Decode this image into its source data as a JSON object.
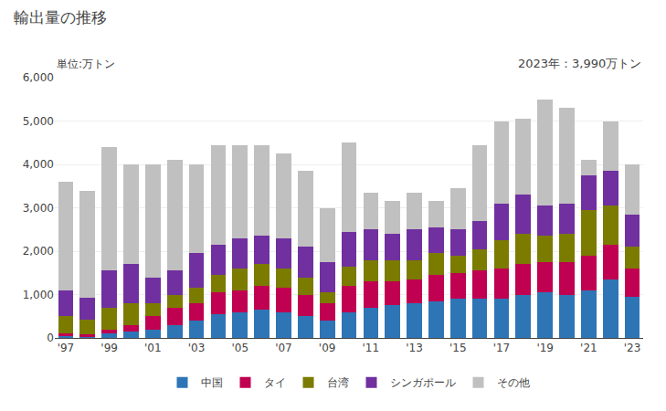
{
  "chart_data": {
    "type": "bar",
    "stacked": true,
    "title": "輸出量の推移",
    "subtitle": "単位:万トン",
    "annotations": [
      "2023年：3,990万トン"
    ],
    "categories": [
      "'97",
      null,
      "'99",
      null,
      "'01",
      null,
      "'03",
      null,
      "'05",
      null,
      "'07",
      null,
      "'09",
      null,
      "'11",
      null,
      "'13",
      null,
      "'15",
      null,
      "'17",
      null,
      "'19",
      null,
      "'21",
      null,
      "'23"
    ],
    "series": [
      {
        "name": "中国",
        "color": "#2E75B6",
        "values": [
          50,
          30,
          100,
          150,
          200,
          300,
          400,
          550,
          600,
          650,
          600,
          500,
          400,
          600,
          700,
          750,
          800,
          850,
          900,
          900,
          900,
          1000,
          1050,
          1000,
          1100,
          1350,
          950
        ]
      },
      {
        "name": "タイ",
        "color": "#C00050",
        "values": [
          50,
          50,
          100,
          150,
          300,
          400,
          400,
          500,
          500,
          550,
          550,
          500,
          400,
          600,
          600,
          550,
          550,
          600,
          600,
          650,
          700,
          700,
          700,
          750,
          800,
          800,
          650
        ]
      },
      {
        "name": "台湾",
        "color": "#7B7B00",
        "values": [
          400,
          350,
          500,
          500,
          300,
          300,
          350,
          400,
          500,
          500,
          450,
          400,
          250,
          450,
          500,
          500,
          450,
          500,
          400,
          500,
          650,
          700,
          600,
          650,
          1050,
          900,
          500
        ]
      },
      {
        "name": "シンガポール",
        "color": "#7030A0",
        "values": [
          600,
          500,
          850,
          900,
          600,
          550,
          800,
          700,
          700,
          650,
          700,
          700,
          700,
          800,
          700,
          600,
          700,
          600,
          600,
          650,
          850,
          900,
          700,
          700,
          800,
          800,
          750
        ]
      },
      {
        "name": "その他",
        "color": "#C0C0C0",
        "values": [
          2500,
          2450,
          2850,
          2300,
          2600,
          2550,
          2050,
          2300,
          2150,
          2100,
          1950,
          1750,
          1250,
          2050,
          850,
          750,
          850,
          600,
          950,
          1750,
          1900,
          1750,
          2450,
          2200,
          350,
          1150,
          1150
        ]
      }
    ],
    "ylim": [
      0,
      6000
    ],
    "yticks": [
      0,
      {
        "value": 1000,
        "label": "1,000"
      },
      {
        "value": 2000,
        "label": "2,000"
      },
      {
        "value": 3000,
        "label": "3,000"
      },
      {
        "value": 4000,
        "label": "4,000"
      },
      {
        "value": 5000,
        "label": "5,000"
      },
      {
        "value": 6000,
        "label": "6,000"
      }
    ],
    "grid": true,
    "legend": "bottom"
  }
}
